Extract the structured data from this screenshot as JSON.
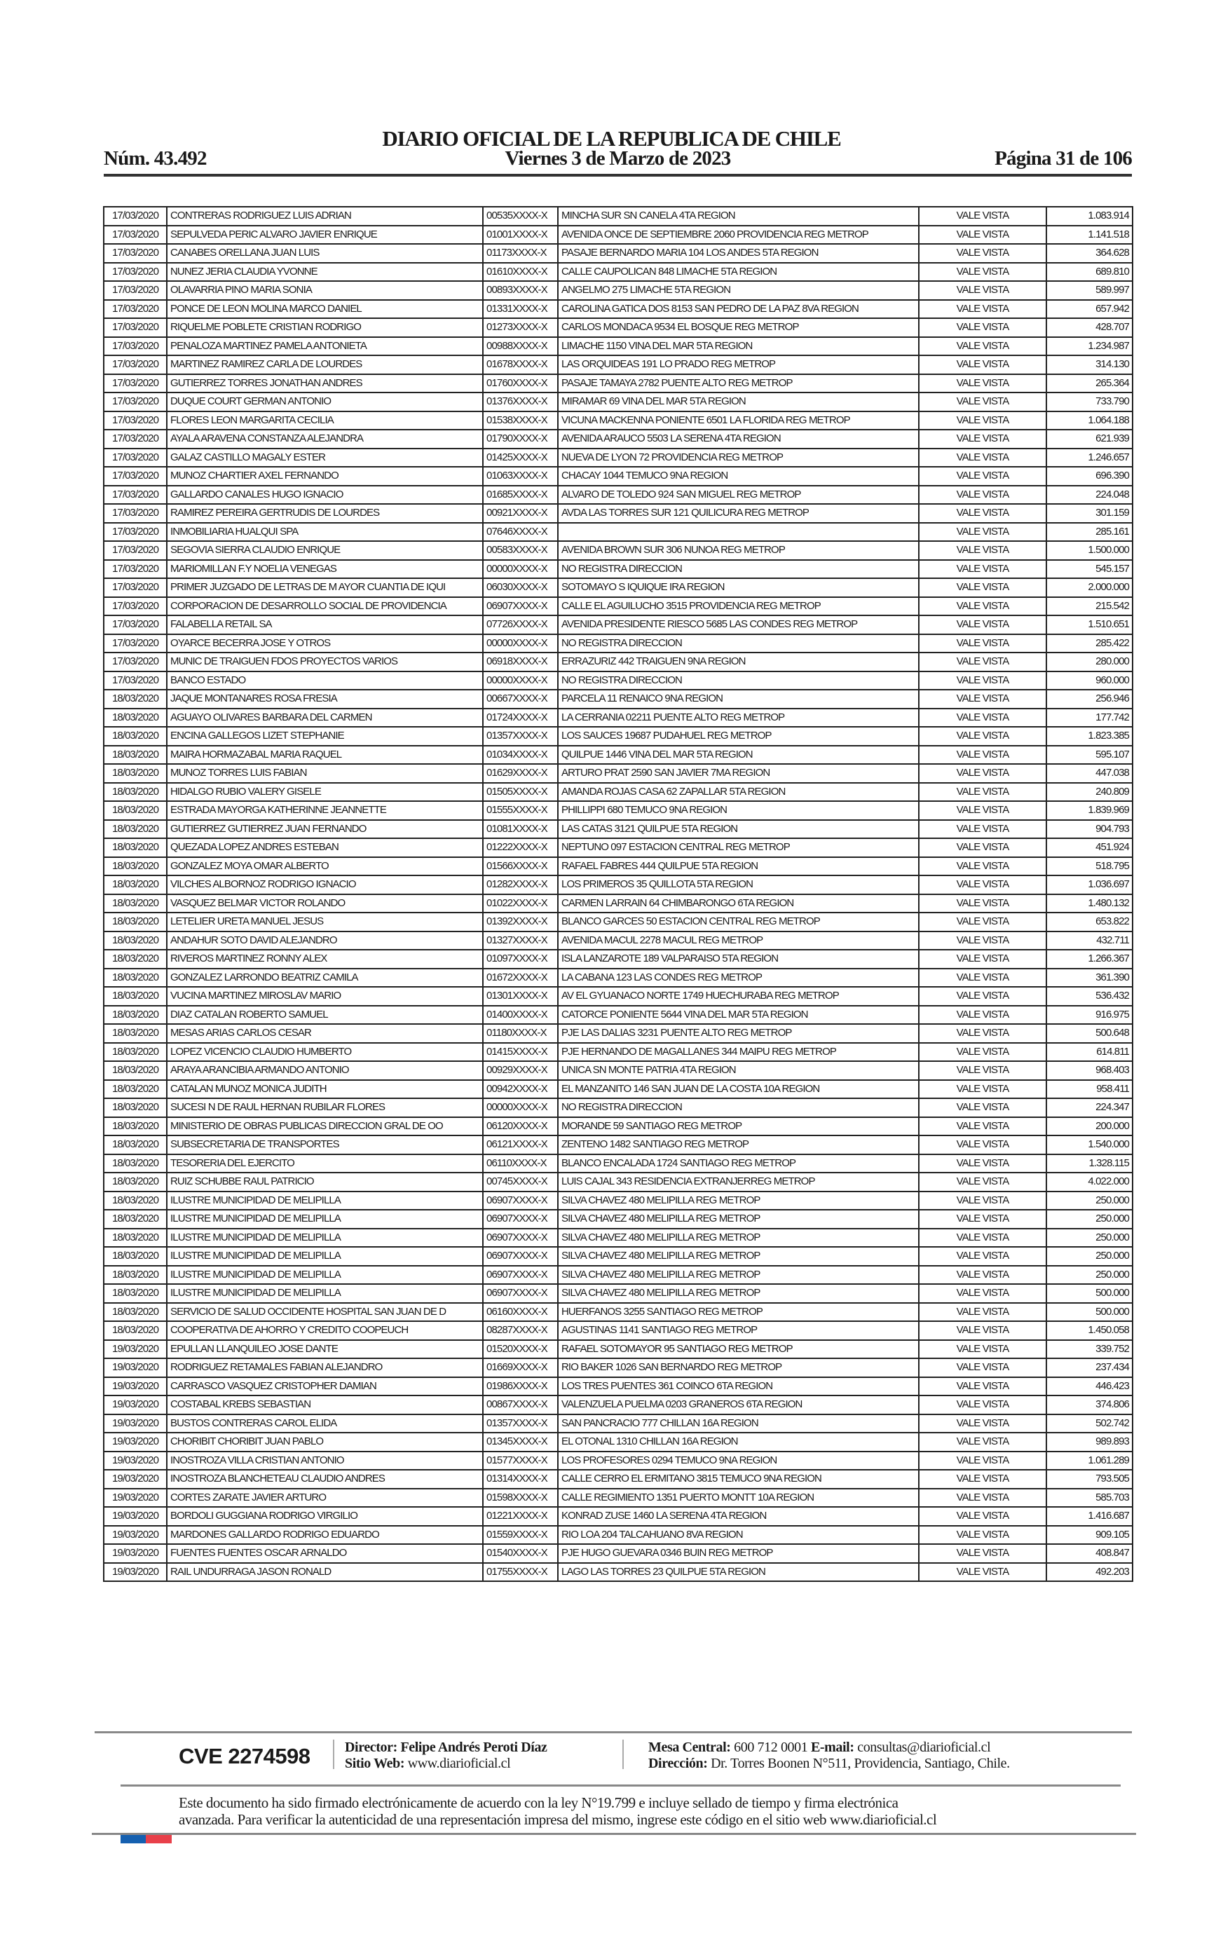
{
  "header": {
    "title": "DIARIO OFICIAL DE LA REPUBLICA DE CHILE",
    "number": "Núm. 43.492",
    "date": "Viernes 3 de Marzo de 2023",
    "page": "Página 31 de 106"
  },
  "table": {
    "rows": [
      [
        "17/03/2020",
        "CONTRERAS RODRIGUEZ LUIS ADRIAN",
        "00535XXXX-X",
        "MINCHA SUR SN CANELA 4TA REGION",
        "VALE VISTA",
        "1.083.914"
      ],
      [
        "17/03/2020",
        "SEPULVEDA PERIC ALVARO JAVIER ENRIQUE",
        "01001XXXX-X",
        "AVENIDA ONCE DE SEPTIEMBRE 2060 PROVIDENCIA REG METROP",
        "VALE VISTA",
        "1.141.518"
      ],
      [
        "17/03/2020",
        "CANABES ORELLANA JUAN LUIS",
        "01173XXXX-X",
        "PASAJE BERNARDO MARIA 104 LOS ANDES 5TA REGION",
        "VALE VISTA",
        "364.628"
      ],
      [
        "17/03/2020",
        "NUNEZ JERIA CLAUDIA YVONNE",
        "01610XXXX-X",
        "CALLE CAUPOLICAN 848 LIMACHE 5TA REGION",
        "VALE VISTA",
        "689.810"
      ],
      [
        "17/03/2020",
        "OLAVARRIA PINO MARIA SONIA",
        "00893XXXX-X",
        "ANGELMO 275 LIMACHE 5TA REGION",
        "VALE VISTA",
        "589.997"
      ],
      [
        "17/03/2020",
        "PONCE DE LEON MOLINA MARCO DANIEL",
        "01331XXXX-X",
        "CAROLINA GATICA DOS 8153 SAN PEDRO DE LA PAZ 8VA REGION",
        "VALE VISTA",
        "657.942"
      ],
      [
        "17/03/2020",
        "RIQUELME POBLETE CRISTIAN RODRIGO",
        "01273XXXX-X",
        "CARLOS MONDACA 9534 EL BOSQUE REG METROP",
        "VALE VISTA",
        "428.707"
      ],
      [
        "17/03/2020",
        "PENALOZA MARTINEZ PAMELA ANTONIETA",
        "00988XXXX-X",
        "LIMACHE 1150 VINA DEL MAR 5TA REGION",
        "VALE VISTA",
        "1.234.987"
      ],
      [
        "17/03/2020",
        "MARTINEZ RAMIREZ CARLA DE LOURDES",
        "01678XXXX-X",
        "LAS ORQUIDEAS 191 LO PRADO REG METROP",
        "VALE VISTA",
        "314.130"
      ],
      [
        "17/03/2020",
        "GUTIERREZ TORRES JONATHAN ANDRES",
        "01760XXXX-X",
        "PASAJE TAMAYA 2782 PUENTE ALTO REG METROP",
        "VALE VISTA",
        "265.364"
      ],
      [
        "17/03/2020",
        "DUQUE COURT GERMAN ANTONIO",
        "01376XXXX-X",
        "MIRAMAR 69 VINA DEL MAR 5TA REGION",
        "VALE VISTA",
        "733.790"
      ],
      [
        "17/03/2020",
        "FLORES LEON MARGARITA CECILIA",
        "01538XXXX-X",
        "VICUNA MACKENNA PONIENTE 6501 LA FLORIDA REG METROP",
        "VALE VISTA",
        "1.064.188"
      ],
      [
        "17/03/2020",
        "AYALA ARAVENA CONSTANZA ALEJANDRA",
        "01790XXXX-X",
        "AVENIDA ARAUCO 5503 LA SERENA 4TA REGION",
        "VALE VISTA",
        "621.939"
      ],
      [
        "17/03/2020",
        "GALAZ CASTILLO MAGALY ESTER",
        "01425XXXX-X",
        "NUEVA DE LYON 72 PROVIDENCIA REG METROP",
        "VALE VISTA",
        "1.246.657"
      ],
      [
        "17/03/2020",
        "MUNOZ CHARTIER AXEL FERNANDO",
        "01063XXXX-X",
        "CHACAY 1044 TEMUCO 9NA REGION",
        "VALE VISTA",
        "696.390"
      ],
      [
        "17/03/2020",
        "GALLARDO CANALES HUGO IGNACIO",
        "01685XXXX-X",
        "ALVARO DE TOLEDO 924 SAN MIGUEL REG METROP",
        "VALE VISTA",
        "224.048"
      ],
      [
        "17/03/2020",
        "RAMIREZ PEREIRA GERTRUDIS DE LOURDES",
        "00921XXXX-X",
        "AVDA LAS TORRES SUR 121 QUILICURA REG METROP",
        "VALE VISTA",
        "301.159"
      ],
      [
        "17/03/2020",
        "INMOBILIARIA HUALQUI SPA",
        "07646XXXX-X",
        "",
        "VALE VISTA",
        "285.161"
      ],
      [
        "17/03/2020",
        "SEGOVIA SIERRA CLAUDIO ENRIQUE",
        "00583XXXX-X",
        "AVENIDA BROWN SUR 306 NUNOA REG METROP",
        "VALE VISTA",
        "1.500.000"
      ],
      [
        "17/03/2020",
        "MARIOMILLAN F.Y NOELIA VENEGAS",
        "00000XXXX-X",
        "NO REGISTRA DIRECCION",
        "VALE VISTA",
        "545.157"
      ],
      [
        "17/03/2020",
        "PRIMER JUZGADO DE LETRAS DE M AYOR CUANTIA DE IQUI",
        "06030XXXX-X",
        "SOTOMAYO S IQUIQUE IRA REGION",
        "VALE VISTA",
        "2.000.000"
      ],
      [
        "17/03/2020",
        "CORPORACION DE DESARROLLO SOCIAL DE PROVIDENCIA",
        "06907XXXX-X",
        "CALLE EL AGUILUCHO 3515 PROVIDENCIA REG METROP",
        "VALE VISTA",
        "215.542"
      ],
      [
        "17/03/2020",
        "FALABELLA RETAIL SA",
        "07726XXXX-X",
        "AVENIDA PRESIDENTE RIESCO 5685 LAS CONDES REG METROP",
        "VALE VISTA",
        "1.510.651"
      ],
      [
        "17/03/2020",
        "OYARCE BECERRA JOSE Y OTROS",
        "00000XXXX-X",
        "NO REGISTRA DIRECCION",
        "VALE VISTA",
        "285.422"
      ],
      [
        "17/03/2020",
        "MUNIC DE TRAIGUEN FDOS PROYECTOS VARIOS",
        "06918XXXX-X",
        "ERRAZURIZ 442 TRAIGUEN 9NA REGION",
        "VALE VISTA",
        "280.000"
      ],
      [
        "17/03/2020",
        "BANCO ESTADO",
        "00000XXXX-X",
        "NO REGISTRA DIRECCION",
        "VALE VISTA",
        "960.000"
      ],
      [
        "18/03/2020",
        "JAQUE MONTANARES ROSA FRESIA",
        "00667XXXX-X",
        "PARCELA 11 RENAICO 9NA REGION",
        "VALE VISTA",
        "256.946"
      ],
      [
        "18/03/2020",
        "AGUAYO OLIVARES BARBARA DEL CARMEN",
        "01724XXXX-X",
        "LA CERRANIA 02211 PUENTE ALTO REG METROP",
        "VALE VISTA",
        "177.742"
      ],
      [
        "18/03/2020",
        "ENCINA GALLEGOS LIZET STEPHANIE",
        "01357XXXX-X",
        "LOS SAUCES 19687 PUDAHUEL REG METROP",
        "VALE VISTA",
        "1.823.385"
      ],
      [
        "18/03/2020",
        "MAIRA HORMAZABAL MARIA RAQUEL",
        "01034XXXX-X",
        "QUILPUE 1446 VINA DEL MAR 5TA REGION",
        "VALE VISTA",
        "595.107"
      ],
      [
        "18/03/2020",
        "MUNOZ TORRES LUIS FABIAN",
        "01629XXXX-X",
        "ARTURO PRAT 2590 SAN JAVIER 7MA REGION",
        "VALE VISTA",
        "447.038"
      ],
      [
        "18/03/2020",
        "HIDALGO RUBIO VALERY GISELE",
        "01505XXXX-X",
        "AMANDA ROJAS CASA 62 ZAPALLAR 5TA REGION",
        "VALE VISTA",
        "240.809"
      ],
      [
        "18/03/2020",
        "ESTRADA MAYORGA KATHERINNE JEANNETTE",
        "01555XXXX-X",
        "PHILLIPPI 680 TEMUCO 9NA REGION",
        "VALE VISTA",
        "1.839.969"
      ],
      [
        "18/03/2020",
        "GUTIERREZ GUTIERREZ JUAN FERNANDO",
        "01081XXXX-X",
        "LAS CATAS 3121 QUILPUE 5TA REGION",
        "VALE VISTA",
        "904.793"
      ],
      [
        "18/03/2020",
        "QUEZADA LOPEZ ANDRES ESTEBAN",
        "01222XXXX-X",
        "NEPTUNO 097 ESTACION CENTRAL REG METROP",
        "VALE VISTA",
        "451.924"
      ],
      [
        "18/03/2020",
        "GONZALEZ MOYA OMAR ALBERTO",
        "01566XXXX-X",
        "RAFAEL FABRES 444 QUILPUE 5TA REGION",
        "VALE VISTA",
        "518.795"
      ],
      [
        "18/03/2020",
        "VILCHES ALBORNOZ RODRIGO IGNACIO",
        "01282XXXX-X",
        "LOS PRIMEROS 35 QUILLOTA 5TA REGION",
        "VALE VISTA",
        "1.036.697"
      ],
      [
        "18/03/2020",
        "VASQUEZ BELMAR VICTOR ROLANDO",
        "01022XXXX-X",
        "CARMEN LARRAIN 64 CHIMBARONGO 6TA REGION",
        "VALE VISTA",
        "1.480.132"
      ],
      [
        "18/03/2020",
        "LETELIER URETA MANUEL JESUS",
        "01392XXXX-X",
        "BLANCO GARCES 50 ESTACION CENTRAL REG METROP",
        "VALE VISTA",
        "653.822"
      ],
      [
        "18/03/2020",
        "ANDAHUR SOTO DAVID ALEJANDRO",
        "01327XXXX-X",
        "AVENIDA MACUL 2278 MACUL REG METROP",
        "VALE VISTA",
        "432.711"
      ],
      [
        "18/03/2020",
        "RIVEROS MARTINEZ RONNY ALEX",
        "01097XXXX-X",
        "ISLA LANZAROTE 189 VALPARAISO 5TA REGION",
        "VALE VISTA",
        "1.266.367"
      ],
      [
        "18/03/2020",
        "GONZALEZ LARRONDO BEATRIZ CAMILA",
        "01672XXXX-X",
        "LA CABANA 123 LAS CONDES REG METROP",
        "VALE VISTA",
        "361.390"
      ],
      [
        "18/03/2020",
        "VUCINA MARTINEZ MIROSLAV MARIO",
        "01301XXXX-X",
        "AV EL GYUANACO NORTE 1749 HUECHURABA REG METROP",
        "VALE VISTA",
        "536.432"
      ],
      [
        "18/03/2020",
        "DIAZ CATALAN ROBERTO SAMUEL",
        "01400XXXX-X",
        "CATORCE PONIENTE 5644 VINA DEL MAR 5TA REGION",
        "VALE VISTA",
        "916.975"
      ],
      [
        "18/03/2020",
        "MESAS ARIAS CARLOS CESAR",
        "01180XXXX-X",
        "PJE LAS DALIAS 3231 PUENTE ALTO REG METROP",
        "VALE VISTA",
        "500.648"
      ],
      [
        "18/03/2020",
        "LOPEZ VICENCIO CLAUDIO HUMBERTO",
        "01415XXXX-X",
        "PJE HERNANDO DE MAGALLANES 344 MAIPU REG METROP",
        "VALE VISTA",
        "614.811"
      ],
      [
        "18/03/2020",
        "ARAYA ARANCIBIA ARMANDO ANTONIO",
        "00929XXXX-X",
        "UNICA SN MONTE PATRIA 4TA REGION",
        "VALE VISTA",
        "968.403"
      ],
      [
        "18/03/2020",
        "CATALAN MUNOZ MONICA JUDITH",
        "00942XXXX-X",
        "EL MANZANITO 146 SAN JUAN DE LA COSTA 10A REGION",
        "VALE VISTA",
        "958.411"
      ],
      [
        "18/03/2020",
        "SUCESI  N DE RAUL HERNAN RUBILAR FLORES",
        "00000XXXX-X",
        "NO REGISTRA DIRECCION",
        "VALE VISTA",
        "224.347"
      ],
      [
        "18/03/2020",
        "MINISTERIO DE OBRAS PUBLICAS DIRECCION GRAL DE OO",
        "06120XXXX-X",
        "MORANDE 59 SANTIAGO REG METROP",
        "VALE VISTA",
        "200.000"
      ],
      [
        "18/03/2020",
        "SUBSECRETARIA DE TRANSPORTES",
        "06121XXXX-X",
        "ZENTENO 1482 SANTIAGO REG METROP",
        "VALE VISTA",
        "1.540.000"
      ],
      [
        "18/03/2020",
        "TESORERIA DEL EJERCITO",
        "06110XXXX-X",
        "BLANCO ENCALADA 1724 SANTIAGO REG METROP",
        "VALE VISTA",
        "1.328.115"
      ],
      [
        "18/03/2020",
        "RUIZ SCHUBBE RAUL PATRICIO",
        "00745XXXX-X",
        "LUIS CAJAL 343 RESIDENCIA EXTRANJERREG METROP",
        "VALE VISTA",
        "4.022.000"
      ],
      [
        "18/03/2020",
        "ILUSTRE MUNICIPIDAD DE MELIPILLA",
        "06907XXXX-X",
        "SILVA CHAVEZ 480 MELIPILLA REG METROP",
        "VALE VISTA",
        "250.000"
      ],
      [
        "18/03/2020",
        "ILUSTRE MUNICIPIDAD DE MELIPILLA",
        "06907XXXX-X",
        "SILVA CHAVEZ 480 MELIPILLA REG METROP",
        "VALE VISTA",
        "250.000"
      ],
      [
        "18/03/2020",
        "ILUSTRE MUNICIPIDAD DE MELIPILLA",
        "06907XXXX-X",
        "SILVA CHAVEZ 480 MELIPILLA REG METROP",
        "VALE VISTA",
        "250.000"
      ],
      [
        "18/03/2020",
        "ILUSTRE MUNICIPIDAD DE MELIPILLA",
        "06907XXXX-X",
        "SILVA CHAVEZ 480 MELIPILLA REG METROP",
        "VALE VISTA",
        "250.000"
      ],
      [
        "18/03/2020",
        "ILUSTRE MUNICIPIDAD DE MELIPILLA",
        "06907XXXX-X",
        "SILVA CHAVEZ 480 MELIPILLA REG METROP",
        "VALE VISTA",
        "250.000"
      ],
      [
        "18/03/2020",
        "ILUSTRE MUNICIPIDAD DE MELIPILLA",
        "06907XXXX-X",
        "SILVA CHAVEZ 480 MELIPILLA REG METROP",
        "VALE VISTA",
        "500.000"
      ],
      [
        "18/03/2020",
        "SERVICIO DE SALUD OCCIDENTE HOSPITAL SAN JUAN DE D",
        "06160XXXX-X",
        "HUERFANOS 3255 SANTIAGO REG METROP",
        "VALE VISTA",
        "500.000"
      ],
      [
        "18/03/2020",
        "COOPERATIVA DE AHORRO Y CREDITO COOPEUCH",
        "08287XXXX-X",
        "AGUSTINAS 1141 SANTIAGO REG METROP",
        "VALE VISTA",
        "1.450.058"
      ],
      [
        "19/03/2020",
        "EPULLAN LLANQUILEO JOSE DANTE",
        "01520XXXX-X",
        "RAFAEL SOTOMAYOR 95 SANTIAGO REG METROP",
        "VALE VISTA",
        "339.752"
      ],
      [
        "19/03/2020",
        "RODRIGUEZ RETAMALES FABIAN ALEJANDRO",
        "01669XXXX-X",
        "RIO BAKER 1026 SAN BERNARDO REG METROP",
        "VALE VISTA",
        "237.434"
      ],
      [
        "19/03/2020",
        "CARRASCO VASQUEZ CRISTOPHER DAMIAN",
        "01986XXXX-X",
        "LOS TRES PUENTES 361 COINCO 6TA REGION",
        "VALE VISTA",
        "446.423"
      ],
      [
        "19/03/2020",
        "COSTABAL KREBS SEBASTIAN",
        "00867XXXX-X",
        "VALENZUELA PUELMA 0203 GRANEROS 6TA REGION",
        "VALE VISTA",
        "374.806"
      ],
      [
        "19/03/2020",
        "BUSTOS CONTRERAS CAROL ELIDA",
        "01357XXXX-X",
        "SAN PANCRACIO 777 CHILLAN 16A REGION",
        "VALE VISTA",
        "502.742"
      ],
      [
        "19/03/2020",
        "CHORIBIT CHORIBIT JUAN PABLO",
        "01345XXXX-X",
        "EL OTONAL 1310 CHILLAN 16A REGION",
        "VALE VISTA",
        "989.893"
      ],
      [
        "19/03/2020",
        "INOSTROZA VILLA CRISTIAN ANTONIO",
        "01577XXXX-X",
        "LOS PROFESORES 0294 TEMUCO 9NA REGION",
        "VALE VISTA",
        "1.061.289"
      ],
      [
        "19/03/2020",
        "INOSTROZA BLANCHETEAU CLAUDIO ANDRES",
        "01314XXXX-X",
        "CALLE CERRO EL ERMITANO 3815 TEMUCO 9NA REGION",
        "VALE VISTA",
        "793.505"
      ],
      [
        "19/03/2020",
        "CORTES ZARATE JAVIER ARTURO",
        "01598XXXX-X",
        "CALLE REGIMIENTO 1351 PUERTO MONTT 10A REGION",
        "VALE VISTA",
        "585.703"
      ],
      [
        "19/03/2020",
        "BORDOLI GUGGIANA RODRIGO VIRGILIO",
        "01221XXXX-X",
        "KONRAD ZUSE 1460 LA SERENA 4TA REGION",
        "VALE VISTA",
        "1.416.687"
      ],
      [
        "19/03/2020",
        "MARDONES GALLARDO RODRIGO EDUARDO",
        "01559XXXX-X",
        "RIO LOA 204 TALCAHUANO 8VA REGION",
        "VALE VISTA",
        "909.105"
      ],
      [
        "19/03/2020",
        "FUENTES FUENTES OSCAR ARNALDO",
        "01540XXXX-X",
        "PJE HUGO GUEVARA 0346 BUIN REG METROP",
        "VALE VISTA",
        "408.847"
      ],
      [
        "19/03/2020",
        "RAIL UNDURRAGA JASON RONALD",
        "01755XXXX-X",
        "LAGO LAS TORRES 23 QUILPUE 5TA REGION",
        "VALE VISTA",
        "492.203"
      ]
    ]
  },
  "footer": {
    "cve": "CVE 2274598",
    "director_label": "Director:",
    "director": "Felipe Andrés Peroti Díaz",
    "web_label": "Sitio Web:",
    "web": "www.diarioficial.cl",
    "phone_label": "Mesa Central:",
    "phone": "600 712 0001",
    "email_label": "E-mail:",
    "email": "consultas@diarioficial.cl",
    "address_label": "Dirección:",
    "address": "Dr. Torres Boonen N°511, Providencia, Santiago, Chile.",
    "legal_line1": "Este documento ha sido firmado electrónicamente de acuerdo con la ley N°19.799 e incluye sellado de tiempo y firma electrónica",
    "legal_line2": "avanzada. Para verificar la autenticidad de una representación impresa del mismo, ingrese este código en el sitio web www.diarioficial.cl"
  },
  "colors": {
    "flag_blue": "#1560b0",
    "flag_red": "#e8404a"
  }
}
